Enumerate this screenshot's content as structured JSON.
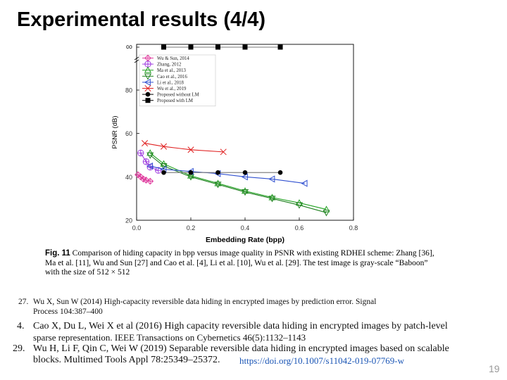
{
  "slide": {
    "title": "Experimental results (4/4)",
    "page_number": "19"
  },
  "chart_data": {
    "type": "line",
    "xlabel": "Embedding Rate (bpp)",
    "ylabel": "PSNR (dB)",
    "xlim": [
      0,
      0.8
    ],
    "ylim": [
      20,
      80
    ],
    "y_has_infinity": true,
    "x_ticks": [
      "0.0",
      "0.2",
      "0.4",
      "0.6",
      "0.8"
    ],
    "y_ticks": [
      "20",
      "40",
      "60",
      "80",
      "∞"
    ],
    "legend_position": "top-left",
    "grid": false,
    "series": [
      {
        "name": "Wu & Sun, 2014",
        "color": "#e040a0",
        "marker": "diamond-plus",
        "points": [
          [
            0.005,
            41
          ],
          [
            0.015,
            40
          ],
          [
            0.025,
            39
          ],
          [
            0.035,
            38.5
          ],
          [
            0.05,
            38
          ]
        ]
      },
      {
        "name": "Zhang, 2012",
        "color": "#a040e0",
        "marker": "circle-plus",
        "points": [
          [
            0.015,
            51
          ],
          [
            0.035,
            47
          ],
          [
            0.05,
            44.5
          ],
          [
            0.08,
            43
          ]
        ]
      },
      {
        "name": "Ma et al., 2013",
        "color": "#20a020",
        "marker": "triangle-up",
        "points": [
          [
            0.05,
            51
          ],
          [
            0.1,
            46
          ],
          [
            0.2,
            40.5
          ],
          [
            0.3,
            37
          ],
          [
            0.4,
            33.5
          ],
          [
            0.5,
            30.5
          ],
          [
            0.6,
            28
          ],
          [
            0.7,
            25
          ]
        ]
      },
      {
        "name": "Cao et al., 2016",
        "color": "#208020",
        "marker": "triangle-down",
        "points": [
          [
            0.05,
            50
          ],
          [
            0.1,
            45
          ],
          [
            0.2,
            40
          ],
          [
            0.3,
            36.5
          ],
          [
            0.4,
            33
          ],
          [
            0.5,
            30
          ],
          [
            0.6,
            27
          ],
          [
            0.7,
            23.5
          ]
        ]
      },
      {
        "name": "Li et al., 2018",
        "color": "#3050d0",
        "marker": "triangle-left",
        "points": [
          [
            0.05,
            45
          ],
          [
            0.1,
            43.5
          ],
          [
            0.2,
            42.5
          ],
          [
            0.3,
            41.5
          ],
          [
            0.4,
            40
          ],
          [
            0.5,
            39
          ],
          [
            0.62,
            37
          ]
        ]
      },
      {
        "name": "Wu et al., 2019",
        "color": "#e02020",
        "marker": "x",
        "points": [
          [
            0.03,
            55.5
          ],
          [
            0.1,
            54
          ],
          [
            0.2,
            52.5
          ],
          [
            0.32,
            51.5
          ]
        ]
      },
      {
        "name": "Proposed without LM",
        "color": "#000000",
        "marker": "circle",
        "points": [
          [
            0.1,
            42
          ],
          [
            0.2,
            42
          ],
          [
            0.3,
            42
          ],
          [
            0.4,
            42
          ],
          [
            0.53,
            42
          ]
        ]
      },
      {
        "name": "Proposed with LM",
        "color": "#000000",
        "marker": "square",
        "points": [
          [
            0.1,
            "inf"
          ],
          [
            0.2,
            "inf"
          ],
          [
            0.3,
            "inf"
          ],
          [
            0.4,
            "inf"
          ],
          [
            0.53,
            "inf"
          ]
        ]
      }
    ]
  },
  "caption": {
    "label": "Fig. 11",
    "text": "Comparison of hiding capacity in bpp versus image quality in PSNR with existing RDHEI scheme: Zhang [36], Ma et al. [11], Wu and Sun [27] and Cao et al. [4], Li et al. [10], Wu et al. [29]. The test image is gray-scale “Baboon” with the size of 512 × 512"
  },
  "references": [
    {
      "num": "27.",
      "lines": [
        "Wu X, Sun W (2014) High-capacity reversible data hiding in encrypted images by prediction error. Signal",
        "Process 104:387–400"
      ]
    },
    {
      "num": "4.",
      "lines": [
        "Cao X, Du L, Wei X et al (2016) High capacity reversible data hiding in encrypted images by patch-level",
        "sparse representation. IEEE Transactions on Cybernetics 46(5):1132–1143"
      ]
    },
    {
      "num": "29.",
      "lines": [
        "Wu H, Li F, Qin C, Wei W (2019) Separable reversible data hiding in encrypted images based on scalable",
        "blocks. Multimed Tools Appl 78:25349–25372."
      ],
      "link": "https://doi.org/10.1007/s11042-019-07769-w"
    }
  ]
}
